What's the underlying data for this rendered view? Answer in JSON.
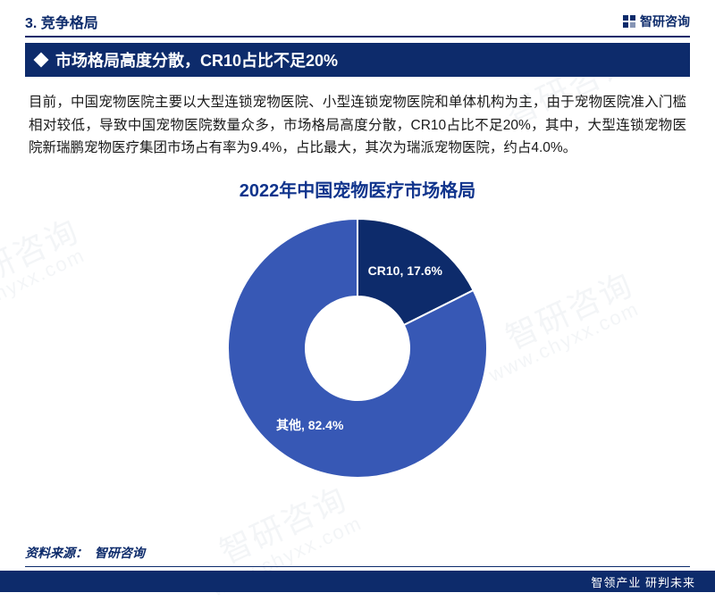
{
  "header": {
    "section_label": "3. 竞争格局",
    "brand": "智研咨询"
  },
  "subheader": {
    "text": "市场格局高度分散，CR10占比不足20%"
  },
  "body": {
    "paragraph": "目前，中国宠物医院主要以大型连锁宠物医院、小型连锁宠物医院和单体机构为主，由于宠物医院准入门槛相对较低，导致中国宠物医院数量众多，市场格局高度分散，CR10占比不足20%，其中，大型连锁宠物医院新瑞鹏宠物医疗集团市场占有率为9.4%，占比最大，其次为瑞派宠物医院，约占4.0%。"
  },
  "chart": {
    "type": "donut",
    "title": "2022年中国宠物医疗市场格局",
    "title_color": "#10348c",
    "title_fontsize": 20,
    "background_color": "#ffffff",
    "inner_radius_pct": 40,
    "outer_radius_pct": 100,
    "start_angle_deg": 0,
    "slices": [
      {
        "label": "CR10",
        "value": 17.6,
        "display": "CR10, 17.6%",
        "color": "#0d2b6b"
      },
      {
        "label": "其他",
        "value": 82.4,
        "display": "其他, 82.4%",
        "color": "#3758b5"
      }
    ],
    "label_color": "#ffffff",
    "label_fontsize": 14
  },
  "source": {
    "label": "资料来源：",
    "value": "智研咨询"
  },
  "footer": {
    "slogan": "智领产业  研判未来"
  },
  "watermarks": {
    "text_cn": "智研咨询",
    "text_url": "www.chyxx.com"
  },
  "colors": {
    "brand_dark": "#0d2b6b",
    "brand_mid": "#3758b5",
    "text": "#1a1a1a"
  }
}
